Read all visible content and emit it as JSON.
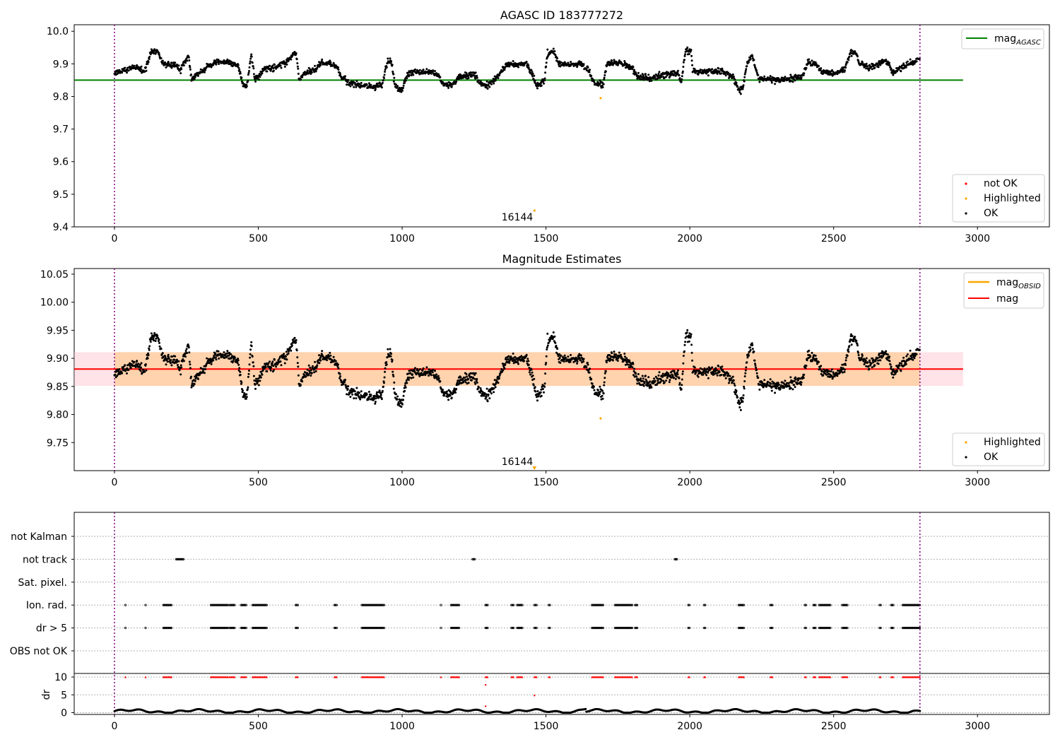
{
  "chart_data": [
    {
      "type": "scatter",
      "title": "AGASC ID 183777272",
      "xlim": [
        -140,
        3250
      ],
      "ylim": [
        9.4,
        10.02
      ],
      "xticks": [
        0,
        500,
        1000,
        1500,
        2000,
        2500,
        3000
      ],
      "yticks": [
        9.4,
        9.5,
        9.6,
        9.7,
        9.8,
        9.9,
        10.0
      ],
      "ytick_labels": [
        "9.4",
        "9.5",
        "9.6",
        "9.7",
        "9.8",
        "9.9",
        "10.0"
      ],
      "vlines": [
        0,
        2800
      ],
      "hlines": [
        {
          "name": "mag_AGASC",
          "y": 9.85,
          "x_range": [
            -140,
            2950
          ],
          "color": "#008000"
        }
      ],
      "highlighted_points": [
        {
          "x": 1460,
          "y": 9.45
        },
        {
          "x": 1690,
          "y": 9.795
        }
      ],
      "annotations": [
        {
          "text": "16144",
          "x": 1460,
          "y": 9.45
        }
      ],
      "legend_lines": [
        {
          "label": "mag",
          "sub": "AGASC",
          "color": "#008000"
        }
      ],
      "legend_points": [
        {
          "label": "not OK",
          "color": "#ff0000"
        },
        {
          "label": "Highlighted",
          "color": "#ffa500"
        },
        {
          "label": "OK",
          "color": "#000000"
        }
      ]
    },
    {
      "type": "scatter",
      "title": "Magnitude Estimates",
      "xlim": [
        -140,
        3250
      ],
      "ylim": [
        9.7,
        10.06
      ],
      "xticks": [
        0,
        500,
        1000,
        1500,
        2000,
        2500,
        3000
      ],
      "yticks": [
        9.75,
        9.8,
        9.85,
        9.9,
        9.95,
        10.0,
        10.05
      ],
      "ytick_labels": [
        "9.75",
        "9.80",
        "9.85",
        "9.90",
        "9.95",
        "10.00",
        "10.05"
      ],
      "vlines": [
        0,
        2800
      ],
      "hlines": [
        {
          "name": "mag",
          "y": 9.881,
          "x_range": [
            -140,
            2950
          ],
          "color": "#ff0000"
        }
      ],
      "bands": [
        {
          "y_range": [
            9.851,
            9.911
          ],
          "x_range": [
            -140,
            2950
          ],
          "color": "#ffc0cb"
        },
        {
          "y_range": [
            9.851,
            9.911
          ],
          "x_range": [
            0,
            2800
          ],
          "color": "#ffa500"
        }
      ],
      "highlighted_points": [
        {
          "x": 1690,
          "y": 9.793
        }
      ],
      "edge_markers": [
        {
          "x": 1460
        }
      ],
      "annotations": [
        {
          "text": "16144",
          "x": 1460
        }
      ],
      "legend_lines": [
        {
          "label": "mag",
          "sub": "OBSID",
          "color": "#ffa500"
        },
        {
          "label": "mag",
          "sub": "",
          "color": "#ff0000"
        }
      ],
      "legend_points": [
        {
          "label": "Highlighted",
          "color": "#ffa500"
        },
        {
          "label": "OK",
          "color": "#000000"
        }
      ]
    },
    {
      "type": "scatter",
      "xlim": [
        -140,
        3250
      ],
      "xticks": [
        0,
        500,
        1000,
        1500,
        2000,
        2500,
        3000
      ],
      "vlines": [
        0,
        2800
      ],
      "flag_labels": [
        "not Kalman",
        "not track",
        "Sat. pixel.",
        "Ion. rad.",
        "dr > 5",
        "OBS not OK"
      ],
      "flag_segments": {
        "not track": [
          [
            215,
            240
          ],
          [
            1245,
            1252
          ],
          [
            1948,
            1958
          ]
        ],
        "Ion. rad.": [
          [
            38,
            40
          ],
          [
            108,
            110
          ],
          [
            170,
            200
          ],
          [
            335,
            395
          ],
          [
            400,
            420
          ],
          [
            440,
            460
          ],
          [
            480,
            530
          ],
          [
            630,
            640
          ],
          [
            765,
            775
          ],
          [
            860,
            940
          ],
          [
            1135,
            1138
          ],
          [
            1170,
            1200
          ],
          [
            1290,
            1298
          ],
          [
            1380,
            1390
          ],
          [
            1400,
            1420
          ],
          [
            1460,
            1470
          ],
          [
            1510,
            1514
          ],
          [
            1660,
            1700
          ],
          [
            1740,
            1800
          ],
          [
            1810,
            1820
          ],
          [
            1995,
            2000
          ],
          [
            2050,
            2054
          ],
          [
            2170,
            2190
          ],
          [
            2280,
            2290
          ],
          [
            2400,
            2405
          ],
          [
            2430,
            2440
          ],
          [
            2450,
            2490
          ],
          [
            2530,
            2550
          ],
          [
            2660,
            2665
          ],
          [
            2700,
            2710
          ],
          [
            2740,
            2800
          ]
        ],
        "dr > 5": [
          [
            38,
            40
          ],
          [
            108,
            110
          ],
          [
            170,
            200
          ],
          [
            335,
            395
          ],
          [
            400,
            420
          ],
          [
            440,
            460
          ],
          [
            480,
            530
          ],
          [
            630,
            640
          ],
          [
            765,
            775
          ],
          [
            860,
            940
          ],
          [
            1135,
            1138
          ],
          [
            1170,
            1200
          ],
          [
            1290,
            1298
          ],
          [
            1380,
            1390
          ],
          [
            1400,
            1420
          ],
          [
            1460,
            1470
          ],
          [
            1510,
            1514
          ],
          [
            1660,
            1700
          ],
          [
            1740,
            1800
          ],
          [
            1810,
            1820
          ],
          [
            1995,
            2000
          ],
          [
            2050,
            2054
          ],
          [
            2170,
            2190
          ],
          [
            2280,
            2290
          ],
          [
            2400,
            2405
          ],
          [
            2430,
            2440
          ],
          [
            2450,
            2490
          ],
          [
            2530,
            2550
          ],
          [
            2660,
            2665
          ],
          [
            2700,
            2710
          ],
          [
            2740,
            2800
          ]
        ]
      },
      "dr_panel": {
        "ylabel": "dr",
        "ylim": [
          -0.5,
          11
        ],
        "yticks": [
          0,
          5,
          10
        ],
        "clip_value": 10,
        "outliers": [
          {
            "x": 1290,
            "y": 7.8
          },
          {
            "x": 1460,
            "y": 4.8
          },
          {
            "x": 1290,
            "y": 1.8
          }
        ]
      }
    }
  ]
}
